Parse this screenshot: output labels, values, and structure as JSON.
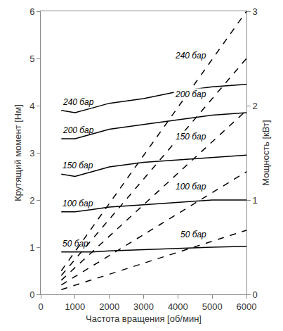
{
  "chart_data": {
    "type": "line",
    "color": "#000000",
    "xlabel": "Частота вращения [об/мин]",
    "ylabel": "Крутящий момент [Нм]",
    "y2label": "Мощность [кВт]",
    "xlim": [
      0,
      6000
    ],
    "xticks": [
      0,
      1000,
      2000,
      3000,
      4000,
      5000,
      6000
    ],
    "ylim": [
      0,
      6
    ],
    "yticks": [
      0,
      1,
      2,
      3,
      4,
      5,
      6
    ],
    "y2lim": [
      0,
      3
    ],
    "y2ticks": [
      0,
      1,
      2,
      3
    ],
    "grid": false,
    "series": [
      {
        "name": "240 бар",
        "axis": "y",
        "line_style": "solid",
        "x": [
          600,
          1000,
          1500,
          2000,
          3000,
          4000,
          5000,
          6000
        ],
        "values": [
          3.9,
          3.85,
          3.95,
          4.05,
          4.15,
          4.3,
          4.4,
          4.45
        ]
      },
      {
        "name": "200 бар",
        "axis": "y",
        "line_style": "solid",
        "x": [
          600,
          1000,
          1500,
          2000,
          3000,
          4000,
          5000,
          6000
        ],
        "values": [
          3.3,
          3.3,
          3.4,
          3.5,
          3.6,
          3.7,
          3.8,
          3.85
        ]
      },
      {
        "name": "150 бар",
        "axis": "y",
        "line_style": "solid",
        "x": [
          600,
          1000,
          1500,
          2000,
          3000,
          4000,
          5000,
          6000
        ],
        "values": [
          2.55,
          2.5,
          2.6,
          2.7,
          2.8,
          2.85,
          2.9,
          2.95
        ]
      },
      {
        "name": "100 бар",
        "axis": "y",
        "line_style": "solid",
        "x": [
          600,
          1000,
          1500,
          2000,
          3000,
          4000,
          5000,
          6000
        ],
        "values": [
          1.75,
          1.75,
          1.8,
          1.85,
          1.9,
          1.95,
          2.0,
          2.0
        ]
      },
      {
        "name": "50 бар",
        "axis": "y",
        "line_style": "solid",
        "x": [
          600,
          1000,
          1500,
          2000,
          3000,
          4000,
          5000,
          6000
        ],
        "values": [
          0.9,
          0.9,
          0.9,
          0.92,
          0.95,
          0.98,
          1.0,
          1.02
        ]
      },
      {
        "name": "240 бар",
        "axis": "y2",
        "line_style": "dash",
        "x": [
          600,
          6000
        ],
        "values": [
          0.25,
          3.0
        ]
      },
      {
        "name": "200 бар",
        "axis": "y2",
        "line_style": "dash",
        "x": [
          600,
          6000
        ],
        "values": [
          0.2,
          2.5
        ]
      },
      {
        "name": "150 бар",
        "axis": "y2",
        "line_style": "dash",
        "x": [
          600,
          6000
        ],
        "values": [
          0.15,
          1.95
        ]
      },
      {
        "name": "100 бар",
        "axis": "y2",
        "line_style": "dash",
        "x": [
          600,
          6000
        ],
        "values": [
          0.1,
          1.3
        ]
      },
      {
        "name": "50 бар",
        "axis": "y2",
        "line_style": "dash",
        "x": [
          600,
          6000
        ],
        "values": [
          0.05,
          0.68
        ]
      }
    ]
  }
}
